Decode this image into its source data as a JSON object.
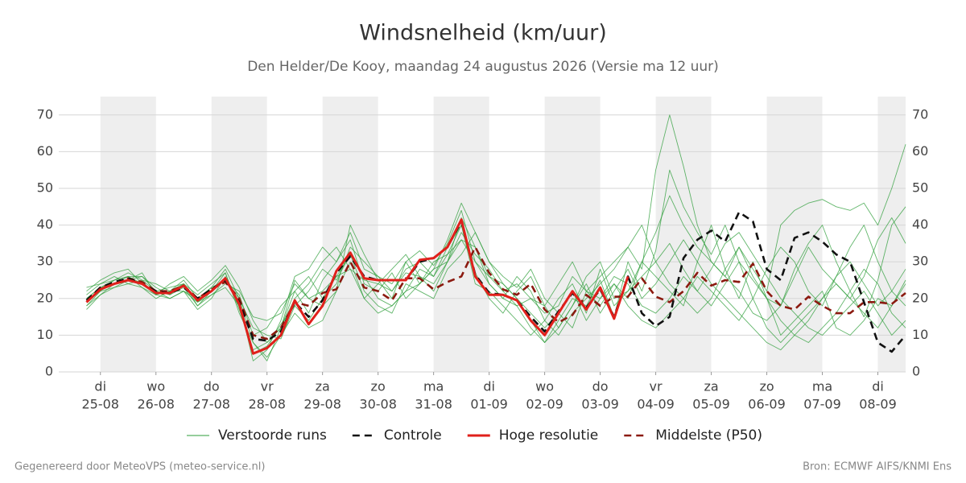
{
  "chart_data": {
    "type": "line",
    "title": "Windsnelheid (km/uur)",
    "subtitle": "Den Helder/De Kooy, maandag 24 augustus 2026 (Versie ma 12 uur)",
    "footer_left": "Gegenereerd door MeteoVPS (meteo-service.nl)",
    "footer_right": "Bron: ECMWF AIFS/KNMI Ens",
    "x": [
      -0.25,
      0,
      0.25,
      0.5,
      0.75,
      1,
      1.25,
      1.5,
      1.75,
      2,
      2.25,
      2.5,
      2.75,
      3,
      3.25,
      3.5,
      3.75,
      4,
      4.25,
      4.5,
      4.75,
      5,
      5.25,
      5.5,
      5.75,
      6,
      6.25,
      6.5,
      6.75,
      7,
      7.25,
      7.5,
      7.75,
      8,
      8.25,
      8.5,
      8.75,
      9,
      9.25,
      9.5,
      9.75,
      10,
      10.25,
      10.5,
      10.75,
      11,
      11.25,
      11.5,
      11.75,
      12,
      12.25,
      12.5,
      12.75,
      13,
      13.25,
      13.5,
      13.75,
      14,
      14.25,
      14.5
    ],
    "xlim": [
      -0.75,
      14.5
    ],
    "xticks": [
      {
        "value": 0,
        "label": [
          "di",
          "25-08"
        ]
      },
      {
        "value": 1,
        "label": [
          "wo",
          "26-08"
        ]
      },
      {
        "value": 2,
        "label": [
          "do",
          "27-08"
        ]
      },
      {
        "value": 3,
        "label": [
          "vr",
          "28-08"
        ]
      },
      {
        "value": 4,
        "label": [
          "za",
          "29-08"
        ]
      },
      {
        "value": 5,
        "label": [
          "zo",
          "30-08"
        ]
      },
      {
        "value": 6,
        "label": [
          "ma",
          "31-08"
        ]
      },
      {
        "value": 7,
        "label": [
          "di",
          "01-09"
        ]
      },
      {
        "value": 8,
        "label": [
          "wo",
          "02-09"
        ]
      },
      {
        "value": 9,
        "label": [
          "do",
          "03-09"
        ]
      },
      {
        "value": 10,
        "label": [
          "vr",
          "04-09"
        ]
      },
      {
        "value": 11,
        "label": [
          "za",
          "05-09"
        ]
      },
      {
        "value": 12,
        "label": [
          "zo",
          "06-09"
        ]
      },
      {
        "value": 13,
        "label": [
          "ma",
          "07-09"
        ]
      },
      {
        "value": 14,
        "label": [
          "di",
          "08-09"
        ]
      }
    ],
    "ylim": [
      0,
      75
    ],
    "yticks": [
      0,
      10,
      20,
      30,
      40,
      50,
      60,
      70
    ],
    "grid": true,
    "ensemble": {
      "name": "Verstoorde runs",
      "color": "#2e9e3a",
      "runs": [
        [
          18,
          22,
          25,
          27,
          25,
          22,
          21,
          24,
          19,
          22,
          27,
          17,
          6,
          8,
          12,
          22,
          16,
          25,
          30,
          38,
          28,
          26,
          24,
          30,
          33,
          29,
          35,
          44,
          30,
          24,
          20,
          18,
          12,
          8,
          14,
          20,
          18,
          25,
          15,
          30,
          22,
          33,
          55,
          45,
          38,
          32,
          40,
          30,
          25,
          20,
          18,
          28,
          35,
          40,
          30,
          22,
          15,
          25,
          40,
          45
        ],
        [
          21,
          24,
          26,
          24,
          23,
          20,
          22,
          25,
          20,
          23,
          28,
          20,
          12,
          10,
          9,
          18,
          22,
          28,
          25,
          32,
          22,
          18,
          16,
          24,
          22,
          20,
          28,
          32,
          38,
          30,
          26,
          23,
          28,
          20,
          16,
          12,
          22,
          18,
          24,
          20,
          30,
          26,
          22,
          18,
          30,
          40,
          28,
          20,
          30,
          20,
          10,
          14,
          18,
          22,
          12,
          10,
          14,
          20,
          18,
          25
        ],
        [
          20,
          23,
          24,
          26,
          26,
          23,
          21,
          23,
          18,
          21,
          24,
          22,
          15,
          14,
          16,
          24,
          20,
          22,
          26,
          28,
          25,
          24,
          22,
          27,
          26,
          24,
          30,
          38,
          32,
          28,
          22,
          24,
          20,
          16,
          18,
          26,
          22,
          20,
          26,
          24,
          18,
          16,
          20,
          26,
          22,
          28,
          35,
          38,
          32,
          26,
          20,
          16,
          12,
          10,
          14,
          18,
          22,
          16,
          10,
          14
        ],
        [
          17,
          21,
          24,
          25,
          27,
          21,
          20,
          22,
          17,
          20,
          26,
          19,
          3,
          6,
          14,
          26,
          28,
          34,
          30,
          36,
          24,
          22,
          27,
          20,
          24,
          30,
          32,
          40,
          27,
          20,
          16,
          22,
          26,
          18,
          12,
          18,
          26,
          30,
          20,
          22,
          26,
          30,
          35,
          28,
          22,
          18,
          24,
          30,
          20,
          12,
          8,
          12,
          16,
          20,
          26,
          30,
          24,
          18,
          22,
          28
        ],
        [
          22,
          25,
          27,
          28,
          24,
          22,
          23,
          24,
          21,
          24,
          27,
          16,
          8,
          4,
          10,
          16,
          12,
          14,
          22,
          30,
          20,
          16,
          18,
          22,
          28,
          26,
          34,
          40,
          24,
          22,
          18,
          14,
          10,
          14,
          20,
          24,
          16,
          28,
          18,
          22,
          30,
          38,
          48,
          40,
          34,
          30,
          26,
          22,
          16,
          14,
          18,
          26,
          34,
          28,
          24,
          20,
          26,
          36,
          42,
          35
        ],
        [
          19,
          22,
          23,
          24,
          25,
          24,
          22,
          22,
          20,
          23,
          25,
          21,
          10,
          12,
          18,
          22,
          26,
          20,
          24,
          34,
          30,
          26,
          22,
          28,
          30,
          26,
          32,
          36,
          30,
          26,
          24,
          20,
          16,
          12,
          16,
          22,
          14,
          20,
          24,
          18,
          14,
          12,
          16,
          20,
          26,
          22,
          18,
          14,
          20,
          28,
          34,
          30,
          22,
          18,
          26,
          34,
          40,
          30,
          22,
          18
        ],
        [
          23,
          24,
          25,
          26,
          23,
          21,
          24,
          26,
          22,
          25,
          29,
          23,
          14,
          8,
          12,
          20,
          24,
          30,
          34,
          28,
          20,
          24,
          28,
          32,
          26,
          22,
          30,
          42,
          34,
          24,
          20,
          26,
          22,
          14,
          10,
          16,
          20,
          24,
          28,
          34,
          40,
          30,
          24,
          20,
          16,
          20,
          28,
          34,
          26,
          20,
          14,
          10,
          8,
          12,
          16,
          22,
          28,
          24,
          16,
          12
        ],
        [
          18,
          21,
          23,
          25,
          26,
          22,
          20,
          22,
          19,
          21,
          23,
          18,
          5,
          7,
          13,
          18,
          14,
          20,
          26,
          32,
          26,
          20,
          18,
          22,
          24,
          28,
          36,
          46,
          38,
          30,
          24,
          20,
          14,
          8,
          12,
          18,
          24,
          16,
          22,
          28,
          20,
          24,
          30,
          36,
          30,
          24,
          20,
          16,
          12,
          8,
          6,
          10,
          14,
          20,
          24,
          20,
          16,
          12,
          18,
          24
        ],
        [
          20,
          23,
          25,
          26,
          24,
          21,
          22,
          24,
          18,
          22,
          25,
          20,
          8,
          3,
          12,
          25,
          20,
          18,
          22,
          40,
          32,
          25,
          20,
          30,
          24,
          28,
          30,
          36,
          34,
          26,
          22,
          18,
          20,
          18,
          24,
          30,
          22,
          26,
          30,
          34,
          28,
          55,
          70,
          56,
          40,
          30,
          26,
          34,
          28,
          22,
          40,
          44,
          46,
          47,
          45,
          44,
          46,
          40,
          50,
          62
        ]
      ]
    },
    "series": [
      {
        "name": "Controle",
        "color": "#111111",
        "dash": true,
        "values": [
          19.5,
          23,
          24.5,
          25.5,
          24,
          22,
          21.5,
          23,
          20,
          22.5,
          25,
          19,
          9,
          8.5,
          11,
          19,
          15,
          19.5,
          27,
          31.5,
          26,
          25,
          25,
          25,
          30,
          31,
          34,
          41,
          26.5,
          21.5,
          21,
          19.5,
          15,
          11,
          16.5,
          21.5,
          17.5,
          22.5,
          15,
          26,
          16,
          12.5,
          15,
          31,
          36,
          38.5,
          35.5,
          43.5,
          41,
          28,
          25,
          36.5,
          38,
          35.5,
          32,
          30,
          19,
          8,
          5.5,
          10
        ]
      },
      {
        "name": "Hoge resolutie",
        "color": "#e0201b",
        "dash": false,
        "values": [
          19,
          22.5,
          24,
          25,
          24,
          21.5,
          21.5,
          23.5,
          19.5,
          22,
          25.5,
          18.5,
          5,
          6.5,
          10,
          19.5,
          13,
          18,
          27.5,
          32.5,
          25.5,
          25,
          25,
          25,
          30.5,
          31,
          34,
          41.5,
          26,
          21,
          21,
          19.5,
          14,
          10,
          16,
          22,
          17,
          23,
          14.5,
          26,
          null,
          null,
          null,
          null,
          null,
          null,
          null,
          null,
          null,
          null,
          null,
          null,
          null,
          null,
          null,
          null,
          null,
          null,
          null,
          null
        ]
      },
      {
        "name": "Middelste (P50)",
        "color": "#8b1a10",
        "dash": true,
        "values": [
          19,
          23,
          24,
          25.5,
          24.5,
          22,
          22,
          23.5,
          20,
          22.5,
          24.5,
          20,
          10,
          9,
          12,
          19,
          18,
          21.5,
          22.5,
          30,
          23,
          22,
          19.5,
          25.5,
          25.5,
          22.5,
          24.5,
          26,
          34,
          27,
          22.5,
          21,
          24,
          17,
          13.5,
          15.5,
          21,
          18,
          20.5,
          20.5,
          25.5,
          20.5,
          19,
          22,
          27,
          23.5,
          25,
          24.5,
          29.5,
          22,
          18,
          17,
          20.5,
          18,
          16,
          16,
          19,
          19,
          18.5,
          21.5
        ]
      }
    ]
  }
}
